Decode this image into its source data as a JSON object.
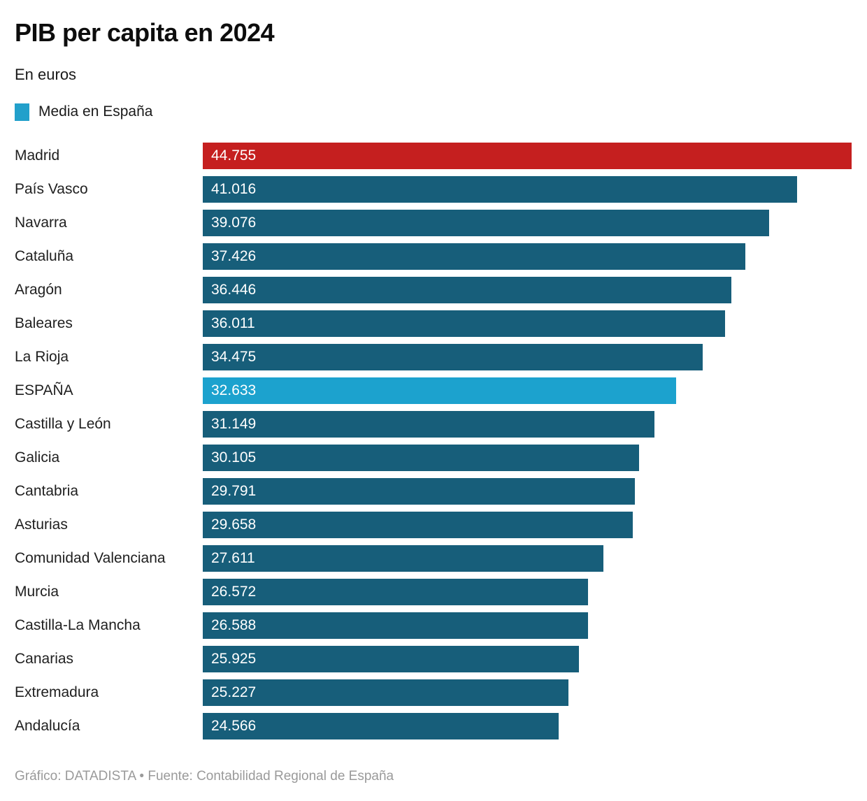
{
  "title": "PIB per capita en 2024",
  "subtitle": "En euros",
  "legend": {
    "label": "Media en España",
    "color": "#22A0CB"
  },
  "footer": "Gráfico: DATADISTA • Fuente: Contabilidad Regional de España",
  "colors": {
    "default": "#175E7A",
    "spain": "#1CA2CE",
    "max": "#C51F1F",
    "label_text": "#1F1F1F",
    "value_text": "#FFFFFF",
    "footer_text": "#9A9A9A"
  },
  "chart_data": {
    "type": "bar",
    "orientation": "horizontal",
    "title": "PIB per capita en 2024",
    "subtitle": "En euros",
    "unit": "euros",
    "legend": [
      {
        "label": "Media en España",
        "color_role": "spain"
      }
    ],
    "xlim": [
      0,
      44755
    ],
    "grid": false,
    "value_label_position": "inside-left",
    "rows": [
      {
        "label": "Madrid",
        "value": 44755,
        "display": "44.755",
        "color": "max"
      },
      {
        "label": "País Vasco",
        "value": 41016,
        "display": "41.016",
        "color": "default"
      },
      {
        "label": "Navarra",
        "value": 39076,
        "display": "39.076",
        "color": "default"
      },
      {
        "label": "Cataluña",
        "value": 37426,
        "display": "37.426",
        "color": "default"
      },
      {
        "label": "Aragón",
        "value": 36446,
        "display": "36.446",
        "color": "default"
      },
      {
        "label": "Baleares",
        "value": 36011,
        "display": "36.011",
        "color": "default"
      },
      {
        "label": "La Rioja",
        "value": 34475,
        "display": "34.475",
        "color": "default"
      },
      {
        "label": "ESPAÑA",
        "value": 32633,
        "display": "32.633",
        "color": "spain"
      },
      {
        "label": "Castilla y León",
        "value": 31149,
        "display": "31.149",
        "color": "default"
      },
      {
        "label": "Galicia",
        "value": 30105,
        "display": "30.105",
        "color": "default"
      },
      {
        "label": "Cantabria",
        "value": 29791,
        "display": "29.791",
        "color": "default"
      },
      {
        "label": "Asturias",
        "value": 29658,
        "display": "29.658",
        "color": "default"
      },
      {
        "label": "Comunidad Valenciana",
        "value": 27611,
        "display": "27.611",
        "color": "default"
      },
      {
        "label": "Murcia",
        "value": 26572,
        "display": "26.572",
        "color": "default"
      },
      {
        "label": "Castilla-La Mancha",
        "value": 26588,
        "display": "26.588",
        "color": "default"
      },
      {
        "label": "Canarias",
        "value": 25925,
        "display": "25.925",
        "color": "default"
      },
      {
        "label": "Extremadura",
        "value": 25227,
        "display": "25.227",
        "color": "default"
      },
      {
        "label": "Andalucía",
        "value": 24566,
        "display": "24.566",
        "color": "default"
      }
    ]
  }
}
